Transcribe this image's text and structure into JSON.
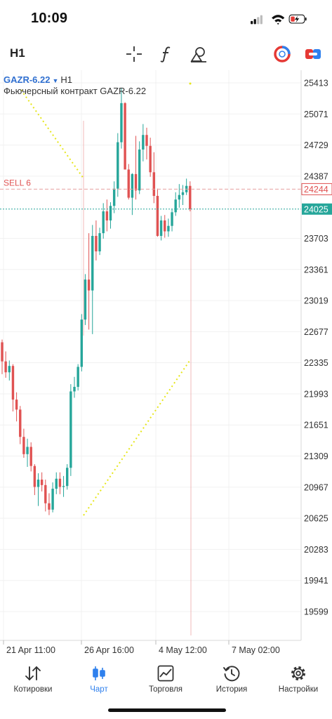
{
  "status": {
    "time": "10:09"
  },
  "toolbar": {
    "timeframe": "H1",
    "icons": [
      "crosshair-icon",
      "function-icon",
      "objects-icon",
      "one-click-trading-icon",
      "trade-panel-icon"
    ]
  },
  "chart": {
    "symbol": "GAZR-6.22",
    "timeframe": "H1",
    "description": "Фьючерсный контракт GAZR-6.22",
    "order_line": {
      "label": "SELL 6",
      "price": "24244"
    },
    "bid_price": "24025",
    "price_labels": [
      "25413",
      "25071",
      "24729",
      "24387",
      "23703",
      "23361",
      "23019",
      "22677",
      "22335",
      "21993",
      "21651",
      "21309",
      "20967",
      "20625",
      "20283",
      "19941",
      "19599"
    ],
    "time_labels": [
      "21 Apr 11:00",
      "26 Apr 16:00",
      "4 May 12:00",
      "7 May 02:00"
    ],
    "colors": {
      "bull": "#26a69a",
      "bear": "#e05252",
      "trendline": "#e6e61a",
      "bid_line": "#26a69a",
      "order_line": "#e8a0a0"
    },
    "ohlc": [
      [
        22560,
        22590,
        22210,
        22350
      ],
      [
        22350,
        22460,
        22170,
        22230
      ],
      [
        22230,
        22360,
        22140,
        22300
      ],
      [
        22300,
        22320,
        21800,
        21930
      ],
      [
        21930,
        22010,
        21690,
        21820
      ],
      [
        21820,
        21860,
        21440,
        21520
      ],
      [
        21520,
        21610,
        21290,
        21330
      ],
      [
        21330,
        21500,
        21190,
        21410
      ],
      [
        21410,
        21460,
        21140,
        21200
      ],
      [
        21200,
        21220,
        20880,
        20970
      ],
      [
        20970,
        21120,
        20760,
        21050
      ],
      [
        21050,
        21130,
        20920,
        20990
      ],
      [
        20990,
        21050,
        20700,
        20790
      ],
      [
        20790,
        20900,
        20660,
        20720
      ],
      [
        20720,
        21020,
        20690,
        20950
      ],
      [
        20950,
        21130,
        20890,
        21060
      ],
      [
        21060,
        21130,
        20890,
        20970
      ],
      [
        20970,
        21090,
        20860,
        20980
      ],
      [
        20980,
        21220,
        20940,
        21180
      ],
      [
        21180,
        22100,
        21090,
        22020
      ],
      [
        22020,
        22180,
        21950,
        22070
      ],
      [
        22070,
        22320,
        22030,
        22290
      ],
      [
        22290,
        22870,
        22240,
        22810
      ],
      [
        22810,
        23310,
        22750,
        23250
      ],
      [
        23250,
        23760,
        22700,
        23130
      ],
      [
        23130,
        23850,
        22650,
        23730
      ],
      [
        23730,
        23900,
        23460,
        23560
      ],
      [
        23560,
        23820,
        23520,
        23760
      ],
      [
        23760,
        24090,
        23700,
        24000
      ],
      [
        24000,
        24130,
        23780,
        23900
      ],
      [
        23900,
        24100,
        23810,
        24060
      ],
      [
        24060,
        24330,
        23980,
        24250
      ],
      [
        24250,
        24860,
        24160,
        24760
      ],
      [
        24760,
        25360,
        24690,
        25190
      ],
      [
        25190,
        25200,
        24480,
        24460
      ],
      [
        24460,
        24520,
        24130,
        24150
      ],
      [
        24150,
        24420,
        23960,
        24410
      ],
      [
        24410,
        24830,
        24130,
        24230
      ],
      [
        24230,
        24770,
        24190,
        24680
      ],
      [
        24680,
        24960,
        24550,
        24840
      ],
      [
        24840,
        24920,
        24570,
        24720
      ],
      [
        24720,
        24810,
        24380,
        24430
      ],
      [
        24430,
        24650,
        24090,
        24170
      ],
      [
        24170,
        24250,
        23720,
        23730
      ],
      [
        23730,
        23950,
        23680,
        23900
      ],
      [
        23900,
        23960,
        23710,
        23780
      ],
      [
        23780,
        23920,
        23720,
        23840
      ],
      [
        23840,
        24030,
        23780,
        23990
      ],
      [
        23990,
        24210,
        23950,
        24130
      ],
      [
        24130,
        24300,
        24040,
        24180
      ],
      [
        24180,
        24290,
        24070,
        24210
      ],
      [
        24210,
        24360,
        24180,
        24280
      ],
      [
        24280,
        24330,
        24000,
        24025
      ]
    ]
  },
  "tabs": [
    {
      "label": "Котировки",
      "icon": "quotes-icon"
    },
    {
      "label": "Чарт",
      "icon": "chart-icon"
    },
    {
      "label": "Торговля",
      "icon": "trade-icon"
    },
    {
      "label": "История",
      "icon": "history-icon"
    },
    {
      "label": "Настройки",
      "icon": "settings-icon"
    }
  ]
}
